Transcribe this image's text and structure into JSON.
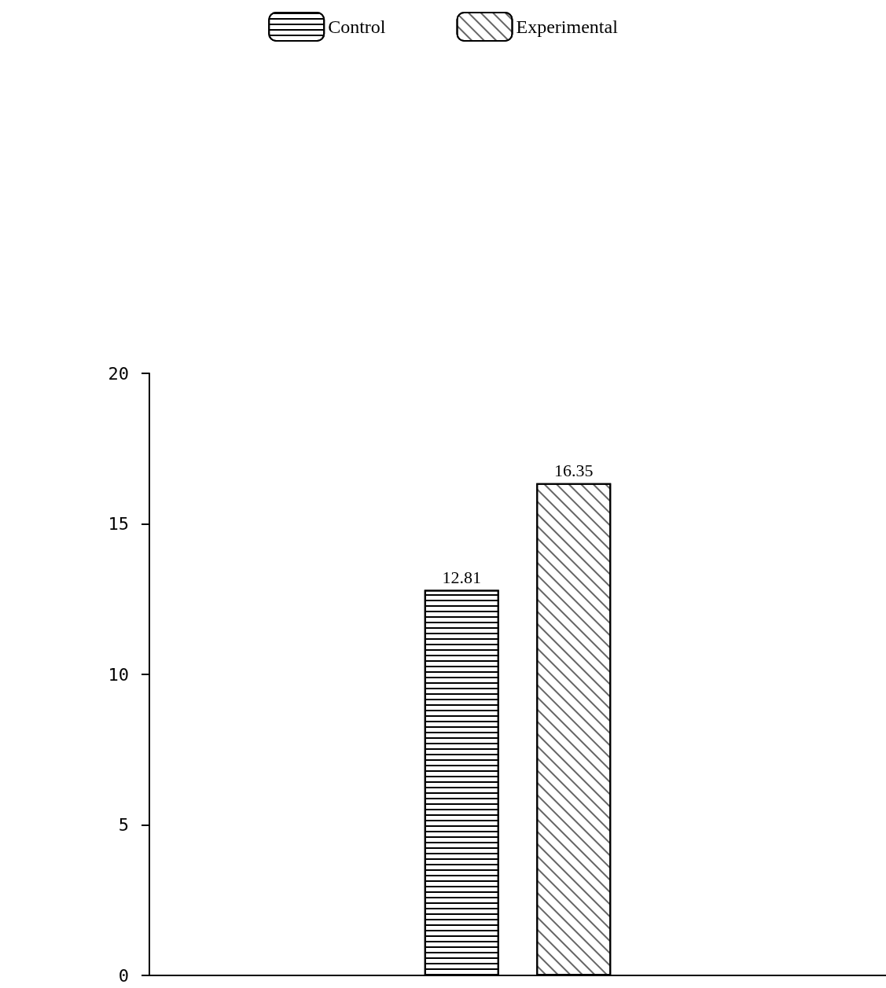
{
  "chart_data": {
    "type": "bar",
    "categories": [
      null
    ],
    "series": [
      {
        "name": "Control",
        "color": "#000000",
        "values": [
          12.81
        ]
      },
      {
        "name": "Experimental",
        "color": "#000000",
        "values": [
          16.35
        ]
      }
    ],
    "ylim": [
      0,
      20
    ],
    "yticks": [
      0,
      5,
      10,
      15,
      20
    ],
    "data_labels": true,
    "legend": "top",
    "grid": false
  }
}
